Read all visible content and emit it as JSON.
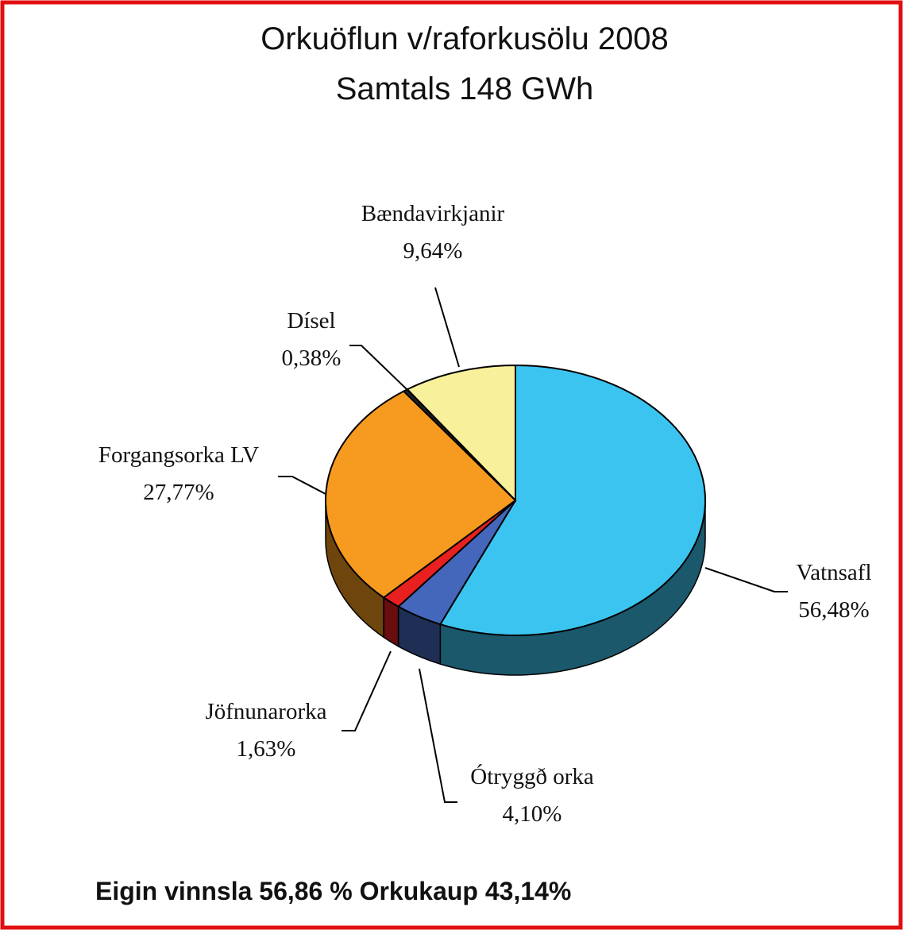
{
  "chart_data": {
    "type": "pie3d",
    "title": "Orkuöflun v/raforkusölu 2008",
    "subtitle": "Samtals 148 GWh",
    "categories": [
      "Vatnsafl",
      "Ótryggð orka",
      "Jöfnunarorka",
      "Forgangsorka LV",
      "Dísel",
      "Bændavirkjanir"
    ],
    "values": [
      56.48,
      4.1,
      1.63,
      27.77,
      0.38,
      9.64
    ],
    "value_labels": [
      "56,48%",
      "4,10%",
      "1,63%",
      "27,77%",
      "0,38%",
      "9,64%"
    ],
    "colors": [
      "#3cc4f0",
      "#4466bb",
      "#e82020",
      "#f79a20",
      "#222222",
      "#f8f09a"
    ],
    "footnote": "Eigin vinnsla 56,86 %   Orkukaup 43,14%"
  }
}
